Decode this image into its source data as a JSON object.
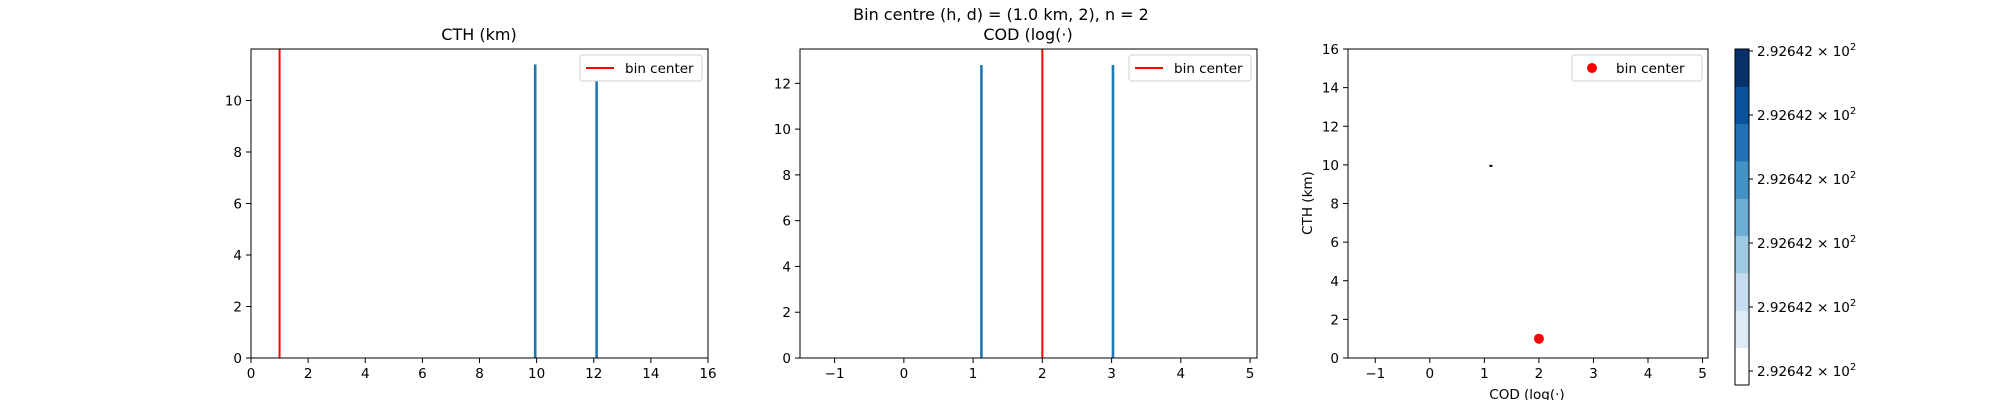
{
  "figure": {
    "suptitle": "Bin centre (h, d) = (1.0 km, 2), n = 2"
  },
  "chart_data": [
    {
      "type": "histogram",
      "title": "CTH (km)",
      "xlabel": "",
      "ylabel": "",
      "xlim": [
        0,
        16
      ],
      "ylim": [
        0,
        12
      ],
      "xticks": [
        0,
        2,
        4,
        6,
        8,
        10,
        12,
        14,
        16
      ],
      "yticks": [
        0,
        2,
        4,
        6,
        8,
        10
      ],
      "bars": [
        {
          "x": 9.95,
          "value": 11.4,
          "color": "#1f77b4"
        },
        {
          "x": 12.1,
          "value": 11.0,
          "color": "#1f77b4"
        }
      ],
      "vline": {
        "x": 1.0,
        "color": "#ff0000",
        "label": "bin center"
      },
      "legend": {
        "position": "top-right",
        "entries": [
          "bin center"
        ]
      }
    },
    {
      "type": "histogram",
      "title": "COD (log(·)",
      "xlabel": "",
      "ylabel": "",
      "xlim": [
        -1.5,
        5.1
      ],
      "ylim": [
        0,
        13.5
      ],
      "xticks": [
        -1,
        0,
        1,
        2,
        3,
        4,
        5
      ],
      "yticks": [
        0,
        2,
        4,
        6,
        8,
        10,
        12
      ],
      "bars": [
        {
          "x": 1.12,
          "value": 12.8,
          "color": "#1f77b4"
        },
        {
          "x": 3.02,
          "value": 12.8,
          "color": "#1f77b4"
        }
      ],
      "vline": {
        "x": 2.0,
        "color": "#ff0000",
        "label": "bin center"
      },
      "legend": {
        "position": "top-right",
        "entries": [
          "bin center"
        ]
      }
    },
    {
      "type": "scatter",
      "title": "",
      "xlabel": "COD (log(·)",
      "ylabel": "CTH (km)",
      "xlim": [
        -1.5,
        5.1
      ],
      "ylim": [
        0,
        16
      ],
      "xticks": [
        -1,
        0,
        1,
        2,
        3,
        4,
        5
      ],
      "yticks": [
        0,
        2,
        4,
        6,
        8,
        10,
        12,
        14,
        16
      ],
      "density_mark": {
        "x": 1.12,
        "y": 9.95,
        "color": "#000000"
      },
      "points": [
        {
          "x": 2,
          "y": 1,
          "color": "#ff0000",
          "label": "bin center"
        }
      ],
      "legend": {
        "position": "top-right",
        "entries": [
          "bin center"
        ]
      },
      "colorbar": {
        "colormap": "Blues",
        "colors": [
          "#ffffff",
          "#deebf7",
          "#c6dbef",
          "#9ecae1",
          "#6baed6",
          "#4292c6",
          "#2171b5",
          "#08519c",
          "#08306b"
        ],
        "tick_mantissa": "2.92642",
        "tick_base": "× 10",
        "tick_exponent": "2",
        "tick_count": 6
      }
    }
  ]
}
